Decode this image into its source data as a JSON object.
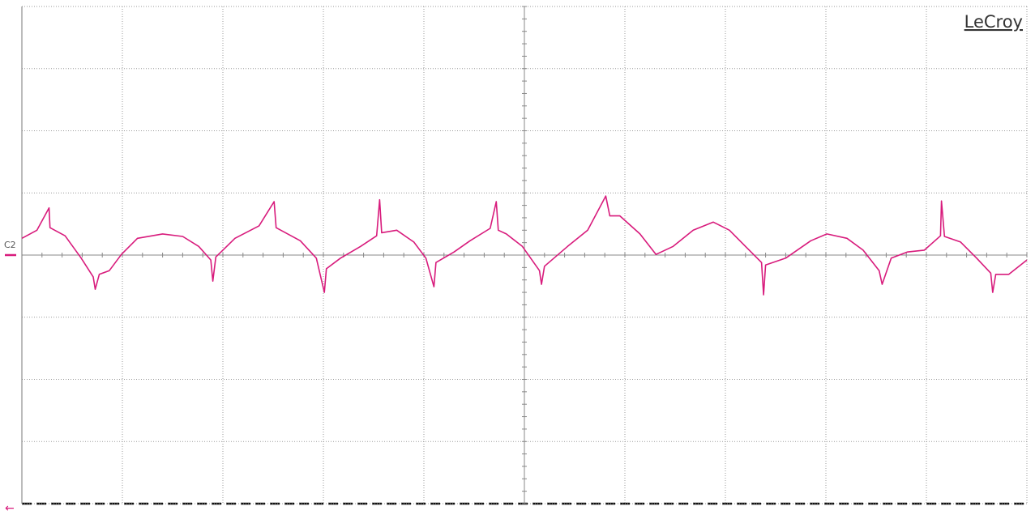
{
  "chart_data": {
    "type": "line",
    "brand": "LeCroy",
    "x": [
      0.0,
      0.15,
      0.27,
      0.28,
      0.43,
      0.59,
      0.71,
      0.73,
      0.77,
      0.87,
      0.99,
      1.15,
      1.4,
      1.6,
      1.76,
      1.88,
      1.9,
      1.93,
      2.0,
      2.12,
      2.36,
      2.51,
      2.53,
      2.77,
      2.93,
      3.01,
      3.03,
      3.17,
      3.37,
      3.53,
      3.56,
      3.58,
      3.73,
      3.9,
      4.02,
      4.1,
      4.12,
      4.3,
      4.46,
      4.66,
      4.72,
      4.74,
      4.82,
      4.98,
      5.15,
      5.17,
      5.2,
      5.43,
      5.63,
      5.81,
      5.85,
      5.95,
      6.15,
      6.31,
      6.48,
      6.68,
      6.88,
      7.04,
      7.2,
      7.36,
      7.38,
      7.4,
      7.6,
      7.85,
      8.01,
      8.21,
      8.37,
      8.53,
      8.56,
      8.65,
      8.81,
      8.98,
      9.14,
      9.15,
      9.18,
      9.34,
      9.5,
      9.64,
      9.66,
      9.69,
      9.82,
      10.0
    ],
    "series": [
      {
        "name": "C2",
        "color": "#d81b7c",
        "values": [
          0.27,
          0.4,
          0.76,
          0.44,
          0.31,
          -0.05,
          -0.35,
          -0.55,
          -0.31,
          -0.25,
          0.01,
          0.27,
          0.34,
          0.3,
          0.14,
          -0.08,
          -0.42,
          -0.03,
          0.08,
          0.27,
          0.47,
          0.86,
          0.44,
          0.23,
          -0.05,
          -0.6,
          -0.22,
          -0.05,
          0.14,
          0.31,
          0.89,
          0.36,
          0.4,
          0.21,
          -0.05,
          -0.51,
          -0.12,
          0.05,
          0.23,
          0.43,
          0.86,
          0.4,
          0.34,
          0.14,
          -0.25,
          -0.47,
          -0.18,
          0.14,
          0.4,
          0.95,
          0.63,
          0.63,
          0.34,
          0.01,
          0.14,
          0.4,
          0.53,
          0.4,
          0.14,
          -0.12,
          -0.64,
          -0.16,
          -0.05,
          0.23,
          0.34,
          0.27,
          0.08,
          -0.25,
          -0.47,
          -0.05,
          0.05,
          0.08,
          0.31,
          0.87,
          0.3,
          0.21,
          -0.05,
          -0.29,
          -0.6,
          -0.31,
          -0.31,
          -0.08
        ]
      }
    ],
    "xlim": [
      0,
      10
    ],
    "ylim": [
      -4,
      4
    ],
    "xticks": [
      0,
      1,
      2,
      3,
      4,
      5,
      6,
      7,
      8,
      9,
      10
    ],
    "yticks": [
      -4,
      -3,
      -2,
      -1,
      0,
      1,
      2,
      3,
      4
    ],
    "grid": true
  }
}
